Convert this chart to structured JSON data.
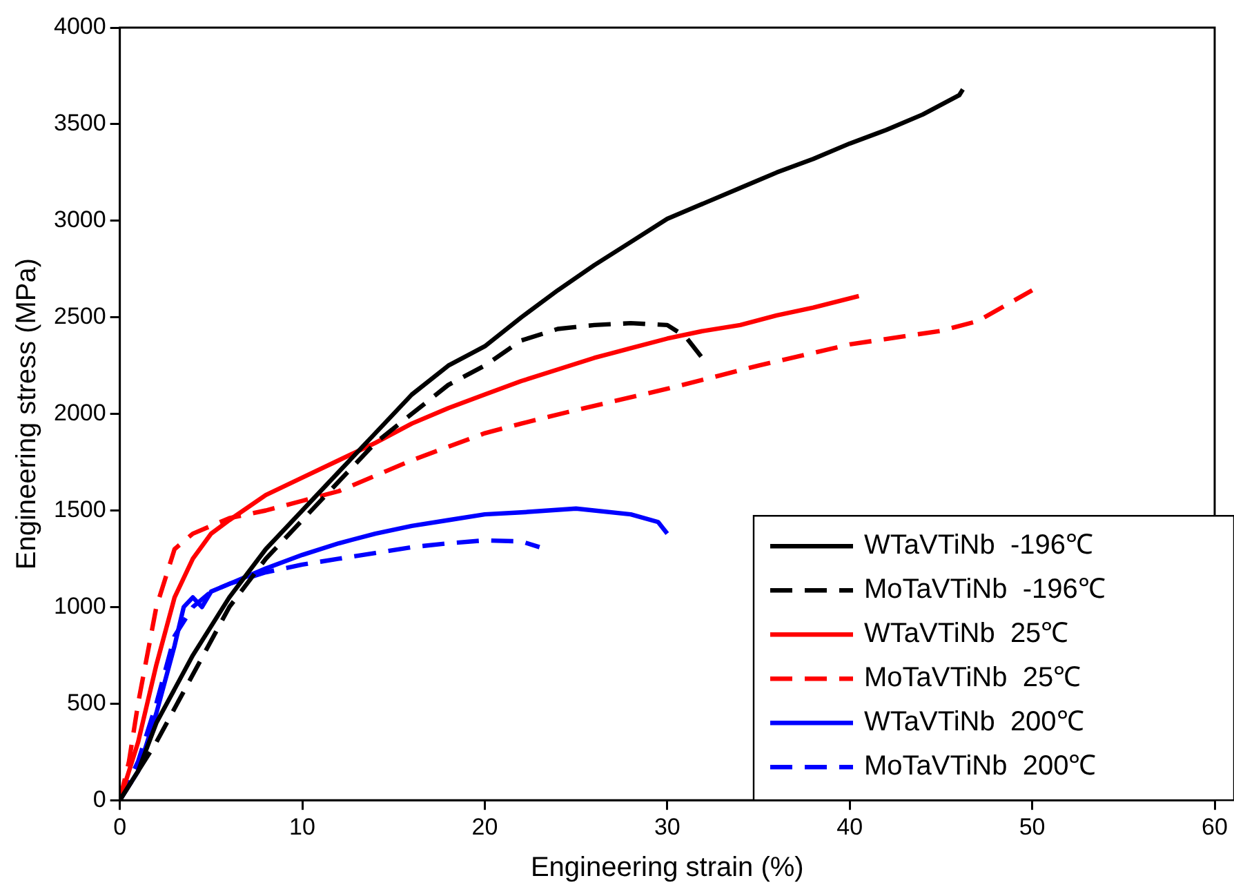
{
  "chart_data": {
    "type": "line",
    "xlabel": "Engineering strain (%)",
    "ylabel": "Engineering stress (MPa)",
    "xlim": [
      0,
      60
    ],
    "ylim": [
      0,
      4000
    ],
    "xticks": [
      0,
      10,
      20,
      30,
      40,
      50,
      60
    ],
    "yticks": [
      0,
      500,
      1000,
      1500,
      2000,
      2500,
      3000,
      3500,
      4000
    ],
    "grid": false,
    "legend": "bottom right",
    "marker": "none",
    "series": [
      {
        "name": "WTaVTiNb  -196℃",
        "color": "#000000",
        "line_style": "solid",
        "x": [
          0,
          1,
          2,
          4,
          6,
          8,
          10,
          12,
          14,
          16,
          18,
          20,
          22,
          24,
          26,
          28,
          30,
          32,
          34,
          36,
          38,
          40,
          42,
          44,
          46,
          46.2
        ],
        "values": [
          0,
          150,
          400,
          750,
          1050,
          1300,
          1500,
          1700,
          1900,
          2100,
          2250,
          2350,
          2500,
          2640,
          2770,
          2890,
          3010,
          3090,
          3170,
          3250,
          3320,
          3400,
          3470,
          3550,
          3650,
          3680
        ]
      },
      {
        "name": "MoTaVTiNb  -196℃",
        "color": "#000000",
        "line_style": "dashed",
        "x": [
          0,
          2,
          4,
          6,
          8,
          10,
          12,
          14,
          16,
          18,
          20,
          22,
          24,
          26,
          28,
          30,
          31,
          32
        ],
        "values": [
          0,
          300,
          650,
          1000,
          1250,
          1450,
          1650,
          1850,
          2000,
          2150,
          2250,
          2380,
          2440,
          2460,
          2470,
          2460,
          2400,
          2280
        ]
      },
      {
        "name": "WTaVTiNb  25℃",
        "color": "#ff0000",
        "line_style": "solid",
        "x": [
          0,
          1,
          2,
          3,
          4,
          5,
          6,
          8,
          10,
          12,
          14,
          16,
          18,
          20,
          22,
          24,
          26,
          28,
          30,
          32,
          34,
          36,
          38,
          40.5
        ],
        "values": [
          0,
          300,
          700,
          1050,
          1250,
          1380,
          1450,
          1580,
          1670,
          1760,
          1850,
          1950,
          2030,
          2100,
          2170,
          2230,
          2290,
          2340,
          2390,
          2430,
          2460,
          2510,
          2550,
          2610
        ]
      },
      {
        "name": "MoTaVTiNb  25℃",
        "color": "#ff0000",
        "line_style": "dashed",
        "x": [
          0,
          0.5,
          1,
          2,
          3,
          4,
          6,
          8,
          10,
          12,
          14,
          16,
          18,
          20,
          22,
          25,
          30,
          35,
          40,
          45,
          47,
          50
        ],
        "values": [
          0,
          200,
          500,
          1000,
          1300,
          1380,
          1460,
          1500,
          1550,
          1600,
          1680,
          1760,
          1830,
          1900,
          1950,
          2020,
          2130,
          2250,
          2360,
          2430,
          2480,
          2640
        ]
      },
      {
        "name": "WTaVTiNb  200℃",
        "color": "#0000ff",
        "line_style": "solid",
        "x": [
          0,
          1,
          2,
          3,
          3.5,
          4,
          4.5,
          5,
          6,
          8,
          10,
          12,
          14,
          16,
          18,
          20,
          22,
          25,
          28,
          29.5,
          30
        ],
        "values": [
          0,
          150,
          450,
          800,
          1000,
          1050,
          1000,
          1080,
          1120,
          1200,
          1270,
          1330,
          1380,
          1420,
          1450,
          1480,
          1490,
          1510,
          1480,
          1440,
          1380
        ]
      },
      {
        "name": "MoTaVTiNb  200℃",
        "color": "#0000ff",
        "line_style": "dashed",
        "x": [
          0,
          1,
          2,
          3,
          4,
          5,
          6,
          8,
          10,
          12,
          14,
          16,
          18,
          20,
          22,
          23
        ],
        "values": [
          0,
          200,
          500,
          850,
          1000,
          1080,
          1120,
          1180,
          1220,
          1250,
          1280,
          1310,
          1330,
          1345,
          1340,
          1310
        ]
      }
    ]
  }
}
